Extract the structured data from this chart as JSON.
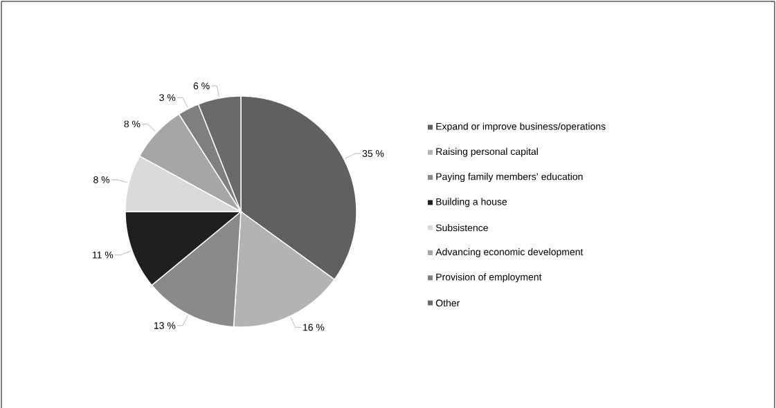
{
  "chart_data": {
    "type": "pie",
    "categories": [
      "Expand or improve business/operations",
      "Raising personal capital",
      "Paying family members’ education",
      "Building a house",
      "Subsistence",
      "Advancing economic development",
      "Provision of employment",
      "Other"
    ],
    "values": [
      35,
      16,
      13,
      11,
      8,
      8,
      3,
      6
    ],
    "value_labels": [
      "35 %",
      "16 %",
      "13 %",
      "11 %",
      "8 %",
      "8 %",
      "3 %",
      "6 %"
    ],
    "colors": [
      "#606060",
      "#b3b3b3",
      "#8a8a8a",
      "#1f1f1f",
      "#dadada",
      "#a6a6a6",
      "#7f7f7f",
      "#6a6a6a"
    ],
    "legend": "right"
  }
}
